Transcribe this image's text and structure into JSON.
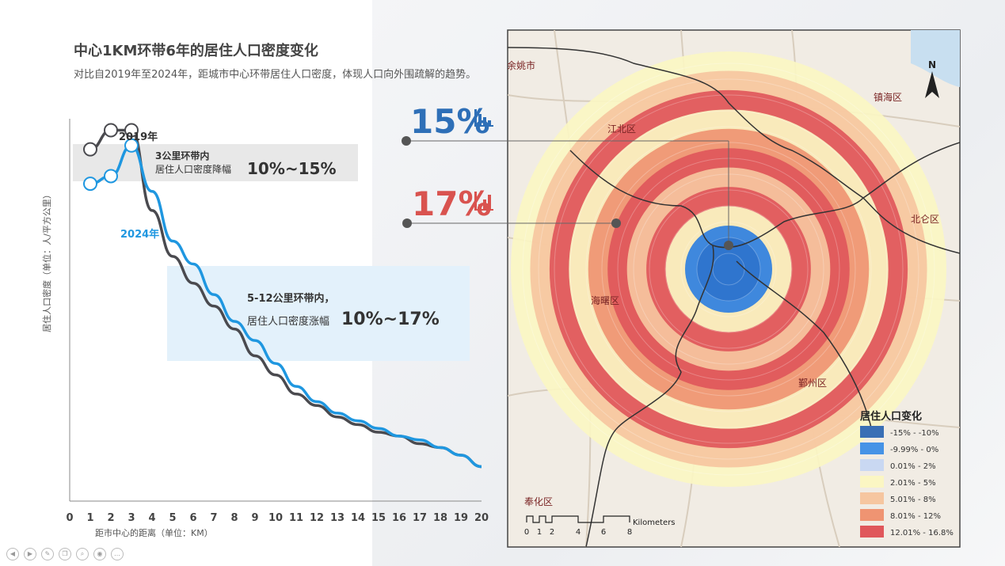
{
  "title": "中心1KM环带6年的居住人口密度变化",
  "subtitle": "对比自2019年至2024年，距城市中心环带居住人口密度，体现人口向外围疏解的趋势。",
  "chart_data": {
    "type": "line",
    "xlabel": "距市中心的距离（单位：KM）",
    "ylabel": "居住人口密度（单位：人/平方公里）",
    "x": [
      1,
      2,
      3,
      4,
      5,
      6,
      7,
      8,
      9,
      10,
      11,
      12,
      13,
      14,
      15,
      16,
      17,
      18,
      19,
      20
    ],
    "xticks": [
      "0",
      "1",
      "2",
      "3",
      "4",
      "5",
      "6",
      "7",
      "8",
      "9",
      "10",
      "11",
      "12",
      "13",
      "14",
      "15",
      "16",
      "17",
      "18",
      "19",
      "20"
    ],
    "xlim": [
      0,
      20
    ],
    "ylim": [
      0,
      100
    ],
    "series": [
      {
        "name": "2019年",
        "color": "#4a4a4f",
        "values": [
          92,
          97,
          97,
          76,
          64,
          57,
          51,
          45,
          38,
          33,
          28,
          25,
          22,
          20,
          18,
          17,
          15,
          14,
          12,
          9
        ]
      },
      {
        "name": "2024年",
        "color": "#1f97e0",
        "values": [
          83,
          85,
          93,
          81,
          68,
          62,
          54,
          47,
          42,
          36,
          30,
          26,
          23,
          21,
          19,
          17,
          16,
          14,
          12,
          9
        ]
      }
    ]
  },
  "annotations": {
    "box1_line1": "3公里环带内",
    "box1_line2": "居住人口密度降幅",
    "box1_value": "10%~15%",
    "box2_line1": "5-12公里环带内，",
    "box2_line2": "居住人口密度涨幅",
    "box2_value": "10%~17%",
    "pct_blue": "15%",
    "pct_red": "17%",
    "blue_color": "#2e6fb7",
    "red_color": "#d9534f"
  },
  "map": {
    "labels": {
      "yuyao": "余姚市",
      "zhenhai": "镇海区",
      "jiangbei": "江北区",
      "beilun": "北仑区",
      "haishu": "海曙区",
      "yinzhou": "鄞州区",
      "fenghua": "奉化区"
    },
    "north": "N",
    "scale_ticks": [
      "0",
      "1",
      "2",
      "4",
      "6",
      "8"
    ],
    "scale_unit": "Kilometers",
    "legend_title": "居住人口变化",
    "legend": [
      {
        "label": "-15% - -10%",
        "color": "#3a6fb5"
      },
      {
        "label": "-9.99% - 0%",
        "color": "#4693e6"
      },
      {
        "label": "0.01% - 2%",
        "color": "#c9d8f2"
      },
      {
        "label": "2.01% - 5%",
        "color": "#fbf6c3"
      },
      {
        "label": "5.01% - 8%",
        "color": "#f6c6a0"
      },
      {
        "label": "8.01% - 12%",
        "color": "#ef9472"
      },
      {
        "label": "12.01% - 16.8%",
        "color": "#e0575b"
      }
    ],
    "rings": [
      "#fbf6c3",
      "#f6c6a0",
      "#e0575b",
      "#fbf6c3",
      "#ef9472",
      "#e0575b",
      "#f6c6a0",
      "#e0575b",
      "#fbf6c3",
      "#2f7fe0"
    ]
  }
}
